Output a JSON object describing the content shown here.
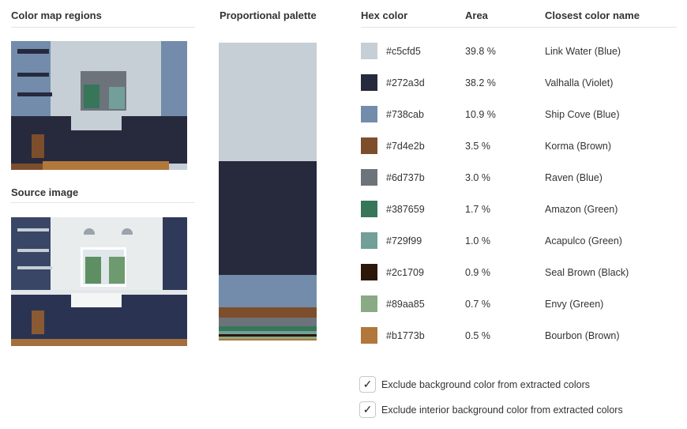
{
  "headers": {
    "color_map_regions": "Color map regions",
    "source_image": "Source image",
    "proportional_palette": "Proportional palette",
    "hex_color": "Hex color",
    "area": "Area",
    "closest_color_name": "Closest color name"
  },
  "colors": [
    {
      "hex": "#c5cfd5",
      "area": "39.8 %",
      "name": "Link Water (Blue)",
      "fraction": 0.398
    },
    {
      "hex": "#272a3d",
      "area": "38.2 %",
      "name": "Valhalla (Violet)",
      "fraction": 0.382
    },
    {
      "hex": "#738cab",
      "area": "10.9 %",
      "name": "Ship Cove (Blue)",
      "fraction": 0.109
    },
    {
      "hex": "#7d4e2b",
      "area": "3.5 %",
      "name": "Korma (Brown)",
      "fraction": 0.035
    },
    {
      "hex": "#6d737b",
      "area": "3.0 %",
      "name": "Raven (Blue)",
      "fraction": 0.03
    },
    {
      "hex": "#387659",
      "area": "1.7 %",
      "name": "Amazon (Green)",
      "fraction": 0.017
    },
    {
      "hex": "#729f99",
      "area": "1.0 %",
      "name": "Acapulco (Green)",
      "fraction": 0.01
    },
    {
      "hex": "#2c1709",
      "area": "0.9 %",
      "name": "Seal Brown (Black)",
      "fraction": 0.009
    },
    {
      "hex": "#89aa85",
      "area": "0.7 %",
      "name": "Envy (Green)",
      "fraction": 0.007
    },
    {
      "hex": "#b1773b",
      "area": "0.5 %",
      "name": "Bourbon (Brown)",
      "fraction": 0.005
    }
  ],
  "options": [
    {
      "label": "Exclude background color from extracted colors",
      "checked": true
    },
    {
      "label": "Exclude interior background color from extracted colors",
      "checked": true
    }
  ],
  "check_glyph": "✓"
}
